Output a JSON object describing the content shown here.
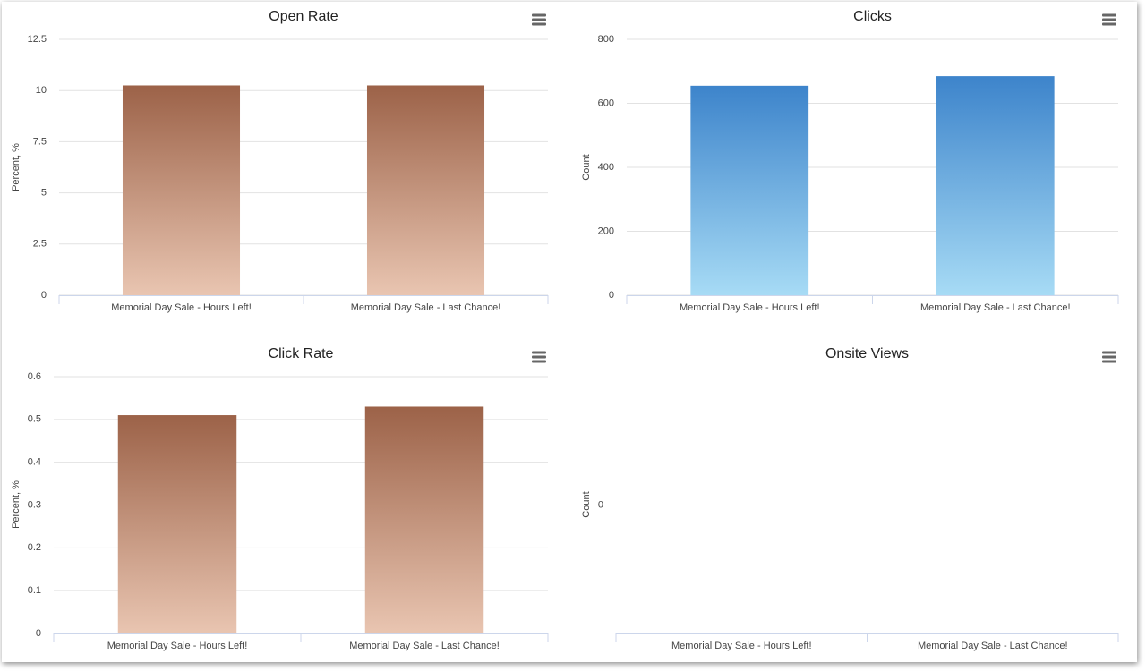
{
  "chart_data": [
    {
      "type": "bar",
      "title": "Open Rate",
      "y_label": "Percent, %",
      "categories": [
        "Memorial Day Sale - Hours Left!",
        "Memorial Day Sale - Last Chance!"
      ],
      "values": [
        10.25,
        10.25
      ],
      "gradient": [
        "#9c6248",
        "#e9c5b1"
      ],
      "ylim": [
        0,
        12.5
      ],
      "yticks": [
        0,
        2.5,
        5,
        7.5,
        10,
        12.5
      ],
      "grid": true
    },
    {
      "type": "bar",
      "title": "Clicks",
      "y_label": "Count",
      "categories": [
        "Memorial Day Sale - Hours Left!",
        "Memorial Day Sale - Last Chance!"
      ],
      "values": [
        655,
        685
      ],
      "gradient": [
        "#3d84cb",
        "#a7dbf5"
      ],
      "ylim": [
        0,
        800
      ],
      "yticks": [
        0,
        200,
        400,
        600,
        800
      ],
      "grid": true
    },
    {
      "type": "bar",
      "title": "Click Rate",
      "y_label": "Percent, %",
      "categories": [
        "Memorial Day Sale - Hours Left!",
        "Memorial Day Sale - Last Chance!"
      ],
      "values": [
        0.51,
        0.53
      ],
      "gradient": [
        "#9c6248",
        "#e9c5b1"
      ],
      "ylim": [
        0,
        0.6
      ],
      "yticks": [
        0,
        0.1,
        0.2,
        0.3,
        0.4,
        0.5,
        0.6
      ],
      "grid": true
    },
    {
      "type": "bar",
      "title": "Onsite Views",
      "y_label": "Count",
      "categories": [
        "Memorial Day Sale - Hours Left!",
        "Memorial Day Sale - Last Chance!"
      ],
      "values": [
        0,
        0
      ],
      "gradient": [
        "#3d84cb",
        "#a7dbf5"
      ],
      "ylim": [
        -1,
        1
      ],
      "yticks": [
        0
      ],
      "grid": true
    }
  ]
}
